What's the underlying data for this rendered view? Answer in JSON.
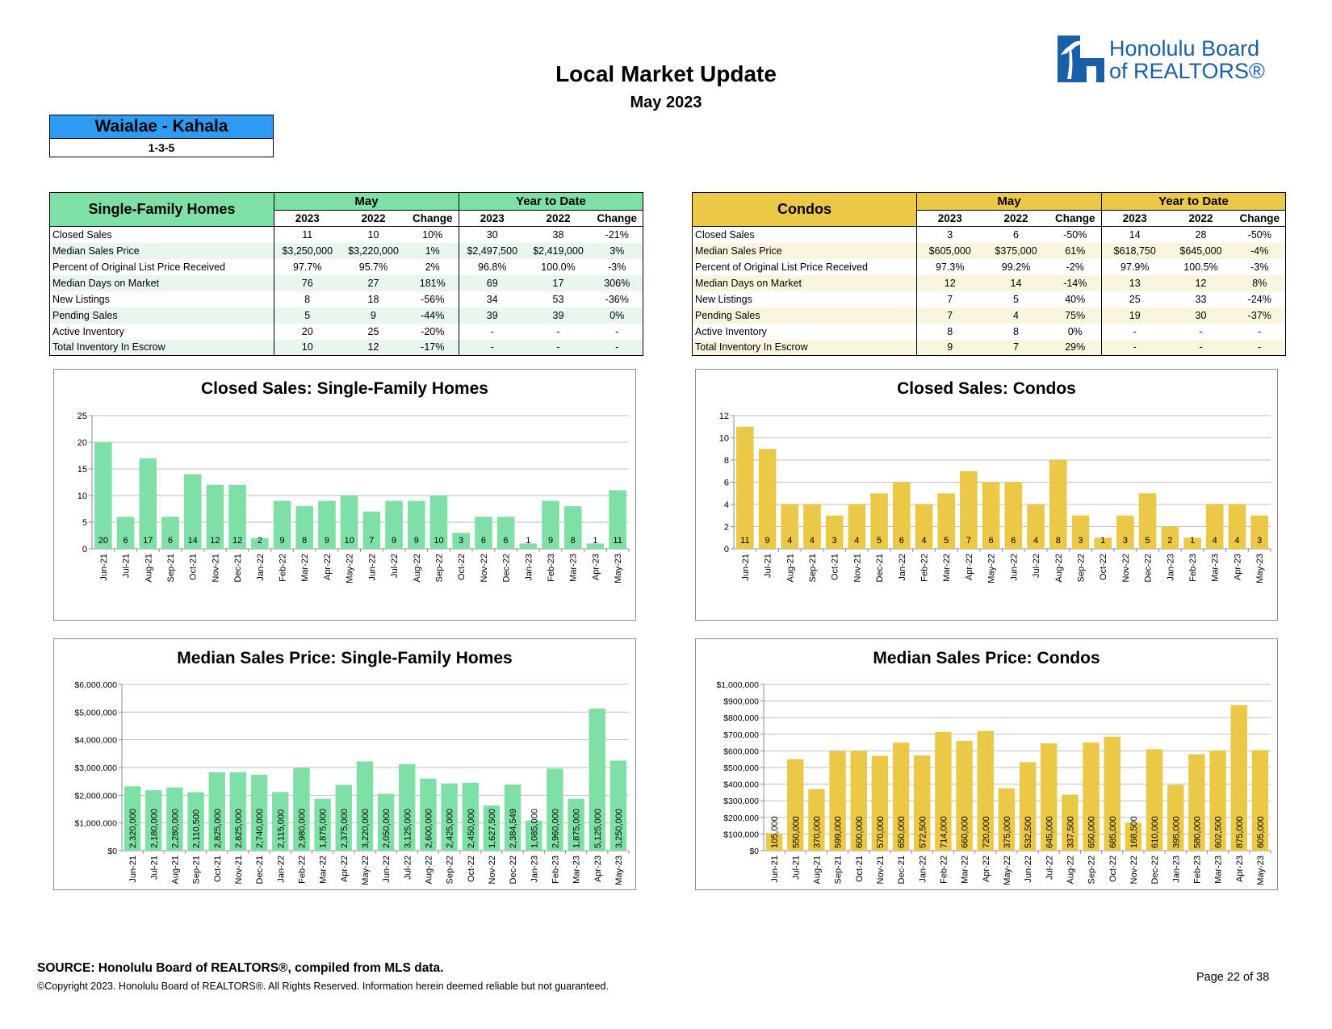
{
  "header": {
    "title": "Local Market Update",
    "subtitle": "May 2023",
    "logo_line1": "Honolulu Board",
    "logo_line2": "of REALTORS®"
  },
  "area": {
    "name": "Waialae - Kahala",
    "code": "1-3-5"
  },
  "colors": {
    "sfh": "#7fe0a5",
    "condo": "#ecc847",
    "area": "#2e9af3",
    "logo": "#1b5fa8"
  },
  "sfh_table": {
    "title": "Single-Family Homes",
    "group1": "May",
    "group2": "Year to Date",
    "subheaders": [
      "2023",
      "2022",
      "Change",
      "2023",
      "2022",
      "Change"
    ],
    "rows": [
      [
        "Closed Sales",
        "11",
        "10",
        "10%",
        "30",
        "38",
        "-21%"
      ],
      [
        "Median Sales Price",
        "$3,250,000",
        "$3,220,000",
        "1%",
        "$2,497,500",
        "$2,419,000",
        "3%"
      ],
      [
        "Percent of Original List Price Received",
        "97.7%",
        "95.7%",
        "2%",
        "96.8%",
        "100.0%",
        "-3%"
      ],
      [
        "Median Days on Market",
        "76",
        "27",
        "181%",
        "69",
        "17",
        "306%"
      ],
      [
        "New Listings",
        "8",
        "18",
        "-56%",
        "34",
        "53",
        "-36%"
      ],
      [
        "Pending Sales",
        "5",
        "9",
        "-44%",
        "39",
        "39",
        "0%"
      ],
      [
        "Active Inventory",
        "20",
        "25",
        "-20%",
        "-",
        "-",
        "-"
      ],
      [
        "Total Inventory In Escrow",
        "10",
        "12",
        "-17%",
        "-",
        "-",
        "-"
      ]
    ]
  },
  "condo_table": {
    "title": "Condos",
    "group1": "May",
    "group2": "Year to Date",
    "subheaders": [
      "2023",
      "2022",
      "Change",
      "2023",
      "2022",
      "Change"
    ],
    "rows": [
      [
        "Closed Sales",
        "3",
        "6",
        "-50%",
        "14",
        "28",
        "-50%"
      ],
      [
        "Median Sales Price",
        "$605,000",
        "$375,000",
        "61%",
        "$618,750",
        "$645,000",
        "-4%"
      ],
      [
        "Percent of Original List Price Received",
        "97.3%",
        "99.2%",
        "-2%",
        "97.9%",
        "100.5%",
        "-3%"
      ],
      [
        "Median Days on Market",
        "12",
        "14",
        "-14%",
        "13",
        "12",
        "8%"
      ],
      [
        "New Listings",
        "7",
        "5",
        "40%",
        "25",
        "33",
        "-24%"
      ],
      [
        "Pending Sales",
        "7",
        "4",
        "75%",
        "19",
        "30",
        "-37%"
      ],
      [
        "Active Inventory",
        "8",
        "8",
        "0%",
        "-",
        "-",
        "-"
      ],
      [
        "Total Inventory In Escrow",
        "9",
        "7",
        "29%",
        "-",
        "-",
        "-"
      ]
    ]
  },
  "chart_data": [
    {
      "id": "sfh_closed",
      "type": "bar",
      "title": "Closed Sales: Single-Family Homes",
      "categories": [
        "Jun-21",
        "Jul-21",
        "Aug-21",
        "Sep-21",
        "Oct-21",
        "Nov-21",
        "Dec-21",
        "Jan-22",
        "Feb-22",
        "Mar-22",
        "Apr-22",
        "May-22",
        "Jun-22",
        "Jul-22",
        "Aug-22",
        "Sep-22",
        "Oct-22",
        "Nov-22",
        "Dec-22",
        "Jan-23",
        "Feb-23",
        "Mar-23",
        "Apr-23",
        "May-23"
      ],
      "values": [
        20,
        6,
        17,
        6,
        14,
        12,
        12,
        2,
        9,
        8,
        9,
        10,
        7,
        9,
        9,
        10,
        3,
        6,
        6,
        1,
        9,
        8,
        1,
        11
      ],
      "labels": [
        "20",
        "6",
        "17",
        "6",
        "14",
        "12",
        "12",
        "2",
        "9",
        "8",
        "9",
        "10",
        "7",
        "9",
        "9",
        "10",
        "3",
        "6",
        "6",
        "1",
        "9",
        "8",
        "1",
        "11"
      ],
      "ylim": [
        0,
        25
      ],
      "ticks": [
        "0",
        "5",
        "10",
        "15",
        "20",
        "25"
      ],
      "color": "#7fe0a5"
    },
    {
      "id": "condo_closed",
      "type": "bar",
      "title": "Closed Sales: Condos",
      "categories": [
        "Jun-21",
        "Jul-21",
        "Aug-21",
        "Sep-21",
        "Oct-21",
        "Nov-21",
        "Dec-21",
        "Jan-22",
        "Feb-22",
        "Mar-22",
        "Apr-22",
        "May-22",
        "Jun-22",
        "Jul-22",
        "Aug-22",
        "Sep-22",
        "Oct-22",
        "Nov-22",
        "Dec-22",
        "Jan-23",
        "Feb-23",
        "Mar-23",
        "Apr-23",
        "May-23"
      ],
      "values": [
        11,
        9,
        4,
        4,
        3,
        4,
        5,
        6,
        4,
        5,
        7,
        6,
        6,
        4,
        8,
        3,
        1,
        3,
        5,
        2,
        1,
        4,
        4,
        3
      ],
      "labels": [
        "11",
        "9",
        "4",
        "4",
        "3",
        "4",
        "5",
        "6",
        "4",
        "5",
        "7",
        "6",
        "6",
        "4",
        "8",
        "3",
        "1",
        "3",
        "5",
        "2",
        "1",
        "4",
        "4",
        "3"
      ],
      "ylim": [
        0,
        12
      ],
      "ticks": [
        "0",
        "2",
        "4",
        "6",
        "8",
        "10",
        "12"
      ],
      "color": "#ecc847"
    },
    {
      "id": "sfh_price",
      "type": "bar",
      "title": "Median Sales Price: Single-Family Homes",
      "categories": [
        "Jun-21",
        "Jul-21",
        "Aug-21",
        "Sep-21",
        "Oct-21",
        "Nov-21",
        "Dec-21",
        "Jan-22",
        "Feb-22",
        "Mar-22",
        "Apr-22",
        "May-22",
        "Jun-22",
        "Jul-22",
        "Aug-22",
        "Sep-22",
        "Oct-22",
        "Nov-22",
        "Dec-22",
        "Jan-23",
        "Feb-23",
        "Mar-23",
        "Apr-23",
        "May-23"
      ],
      "values": [
        2320000,
        2180000,
        2280000,
        2110500,
        2825000,
        2825000,
        2740000,
        2115000,
        2980000,
        1875000,
        2375000,
        3220000,
        2050000,
        3125000,
        2600000,
        2425000,
        2450000,
        1627500,
        2384549,
        1085000,
        2960000,
        1875000,
        5125000,
        3250000
      ],
      "labels": [
        "2,320,000",
        "2,180,000",
        "2,280,000",
        "2,110,500",
        "2,825,000",
        "2,825,000",
        "2,740,000",
        "2,115,000",
        "2,980,000",
        "1,875,000",
        "2,375,000",
        "3,220,000",
        "2,050,000",
        "3,125,000",
        "2,600,000",
        "2,425,000",
        "2,450,000",
        "1,627,500",
        "2,384,549",
        "1,085,000",
        "2,960,000",
        "1,875,000",
        "5,125,000",
        "3,250,000"
      ],
      "ylim": [
        0,
        6000000
      ],
      "ticks": [
        "$0",
        "$1,000,000",
        "$2,000,000",
        "$3,000,000",
        "$4,000,000",
        "$5,000,000",
        "$6,000,000"
      ],
      "color": "#7fe0a5"
    },
    {
      "id": "condo_price",
      "type": "bar",
      "title": "Median Sales Price: Condos",
      "categories": [
        "Jun-21",
        "Jul-21",
        "Aug-21",
        "Sep-21",
        "Oct-21",
        "Nov-21",
        "Dec-21",
        "Jan-22",
        "Feb-22",
        "Mar-22",
        "Apr-22",
        "May-22",
        "Jun-22",
        "Jul-22",
        "Aug-22",
        "Sep-22",
        "Oct-22",
        "Nov-22",
        "Dec-22",
        "Jan-23",
        "Feb-23",
        "Mar-23",
        "Apr-23",
        "May-23"
      ],
      "values": [
        105000,
        550000,
        370000,
        599000,
        600000,
        570000,
        650000,
        572500,
        714000,
        660000,
        720000,
        375000,
        532500,
        645000,
        337500,
        650000,
        685000,
        168500,
        610000,
        395000,
        580000,
        602500,
        875000,
        605000
      ],
      "labels": [
        "105,000",
        "550,000",
        "370,000",
        "599,000",
        "600,000",
        "570,000",
        "650,000",
        "572,500",
        "714,000",
        "660,000",
        "720,000",
        "375,000",
        "532,500",
        "645,000",
        "337,500",
        "650,000",
        "685,000",
        "168,500",
        "610,000",
        "395,000",
        "580,000",
        "602,500",
        "875,000",
        "605,000"
      ],
      "ylim": [
        0,
        1000000
      ],
      "ticks": [
        "$0",
        "$100,000",
        "$200,000",
        "$300,000",
        "$400,000",
        "$500,000",
        "$600,000",
        "$700,000",
        "$800,000",
        "$900,000",
        "$1,000,000"
      ],
      "color": "#ecc847"
    }
  ],
  "footer": {
    "source": "SOURCE: Honolulu Board of REALTORS®, compiled from MLS data.",
    "copyright": "©Copyright 2023. Honolulu Board of REALTORS®. All Rights Reserved. Information herein deemed reliable but not guaranteed.",
    "page": "Page 22 of 38"
  }
}
